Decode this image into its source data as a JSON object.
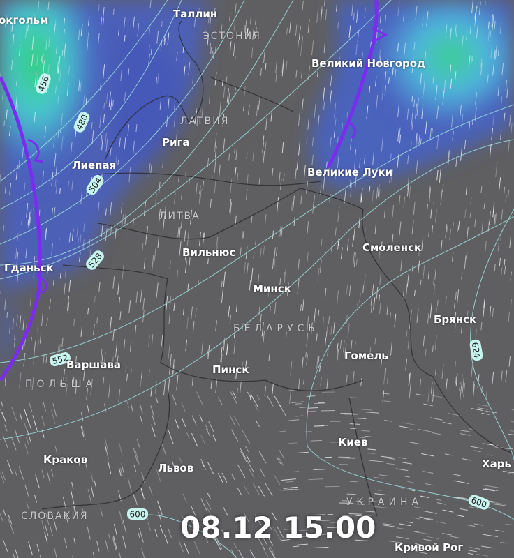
{
  "timestamp": "08.12 15.00",
  "colors": {
    "background": "#5f5f62",
    "precip_blue": "#4a5fc0",
    "precip_cyan": "#4fd4d8",
    "precip_green": "#2fd46a",
    "front": "#7b2cf0",
    "contour": "#9fe3e0"
  },
  "cities": [
    {
      "name": "Стокгольм",
      "display": "окгольм"
    },
    {
      "name": "Таллин"
    },
    {
      "name": "Великий Новгород"
    },
    {
      "name": "Рига"
    },
    {
      "name": "Лиепая"
    },
    {
      "name": "Великие Луки"
    },
    {
      "name": "Вильнюс"
    },
    {
      "name": "Смоленск"
    },
    {
      "name": "Гданьск",
      "display": "Гданьск"
    },
    {
      "name": "Минск"
    },
    {
      "name": "Брянск"
    },
    {
      "name": "Гомель"
    },
    {
      "name": "Варшава"
    },
    {
      "name": "Пинск"
    },
    {
      "name": "Киев"
    },
    {
      "name": "Краков"
    },
    {
      "name": "Львов"
    },
    {
      "name": "Харьков",
      "display": "Харь"
    },
    {
      "name": "Кривой Рог"
    }
  ],
  "countries": [
    "ЭСТОНИЯ",
    "ЛАТВИЯ",
    "ЛИТВА",
    "БЕЛАРУСЬ",
    "ПОЛЬША",
    "СЛОВАКИЯ",
    "УКРАИНА"
  ],
  "contour_labels": [
    "456",
    "480",
    "504",
    "528",
    "552",
    "600",
    "600",
    "624"
  ]
}
